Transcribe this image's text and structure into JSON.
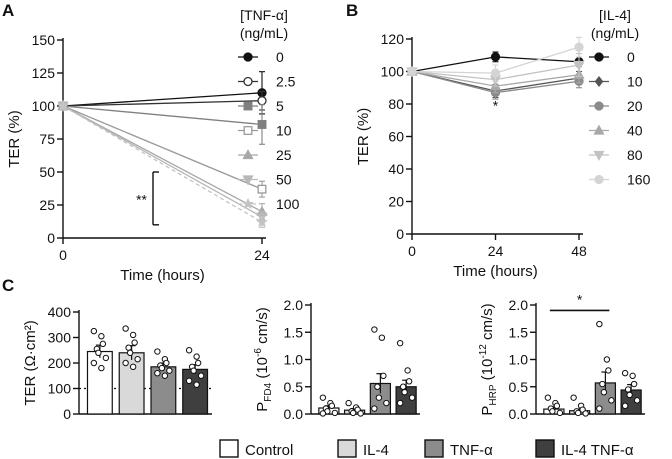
{
  "chart_data": [
    {
      "panel": "A",
      "type": "line",
      "xlabel": "Time (hours)",
      "ylabel": "TER (%)",
      "x": [
        0,
        24
      ],
      "xticks": [
        "0",
        "24"
      ],
      "ylim": [
        0,
        150
      ],
      "yticks": [
        0,
        25,
        50,
        75,
        100,
        125,
        150
      ],
      "legend_title_1": "[TNF-α]",
      "legend_title_2": "(ng/mL)",
      "significance": "**",
      "series": [
        {
          "name": "0",
          "values": [
            100,
            110
          ],
          "err": [
            0,
            16
          ],
          "color": "#111111",
          "marker": "circle",
          "filled": true,
          "dashed": false
        },
        {
          "name": "2.5",
          "values": [
            100,
            104
          ],
          "err": [
            0,
            7
          ],
          "color": "#333333",
          "marker": "circle",
          "filled": false,
          "dashed": false
        },
        {
          "name": "5",
          "values": [
            100,
            86
          ],
          "err": [
            0,
            15
          ],
          "color": "#808080",
          "marker": "square",
          "filled": true,
          "dashed": false
        },
        {
          "name": "10",
          "values": [
            100,
            37
          ],
          "err": [
            0,
            6
          ],
          "color": "#9a9a9a",
          "marker": "square",
          "filled": false,
          "dashed": false
        },
        {
          "name": "25",
          "values": [
            100,
            20
          ],
          "err": [
            0,
            6
          ],
          "color": "#a8a8a8",
          "marker": "triangle-up",
          "filled": true,
          "dashed": false
        },
        {
          "name": "50",
          "values": [
            100,
            16
          ],
          "err": [
            0,
            4
          ],
          "color": "#b8b8b8",
          "marker": "triangle-down",
          "filled": true,
          "dashed": false
        },
        {
          "name": "100",
          "values": [
            100,
            12
          ],
          "err": [
            0,
            4
          ],
          "color": "#c4c4c4",
          "marker": "star",
          "filled": true,
          "dashed": true
        }
      ]
    },
    {
      "panel": "B",
      "type": "line",
      "xlabel": "Time (hours)",
      "ylabel": "TER (%)",
      "x": [
        0,
        24,
        48
      ],
      "xticks": [
        "0",
        "24",
        "48"
      ],
      "ylim": [
        0,
        120
      ],
      "yticks": [
        0,
        20,
        40,
        60,
        80,
        100,
        120
      ],
      "legend_title_1": "[IL-4]",
      "legend_title_2": "(ng/mL)",
      "significance": "*",
      "series": [
        {
          "name": "0",
          "values": [
            100,
            109,
            106
          ],
          "err": [
            0,
            3,
            8
          ],
          "color": "#111111",
          "marker": "circle",
          "filled": true
        },
        {
          "name": "10",
          "values": [
            100,
            88,
            96
          ],
          "err": [
            0,
            4,
            4
          ],
          "color": "#555555",
          "marker": "diamond",
          "filled": true
        },
        {
          "name": "20",
          "values": [
            100,
            87,
            94
          ],
          "err": [
            0,
            4,
            4
          ],
          "color": "#8a8a8a",
          "marker": "circle",
          "filled": true
        },
        {
          "name": "40",
          "values": [
            100,
            91,
            98
          ],
          "err": [
            0,
            4,
            5
          ],
          "color": "#a8a8a8",
          "marker": "triangle-up",
          "filled": true
        },
        {
          "name": "80",
          "values": [
            100,
            95,
            104
          ],
          "err": [
            0,
            4,
            7
          ],
          "color": "#c2c2c2",
          "marker": "triangle-down",
          "filled": true
        },
        {
          "name": "160",
          "values": [
            100,
            99,
            115
          ],
          "err": [
            0,
            5,
            6
          ],
          "color": "#d4d4d4",
          "marker": "circle",
          "filled": true
        }
      ]
    },
    {
      "panel": "C1",
      "type": "bar",
      "ylabel": "TER (Ω·cm²)",
      "ylim": [
        0,
        400
      ],
      "yticks": [
        0,
        100,
        200,
        300,
        400
      ],
      "reference_line": 100,
      "bars": [
        {
          "category": "Control",
          "value": 245,
          "err": 25,
          "points": [
            325,
            305,
            275,
            255,
            240,
            220,
            200,
            180
          ]
        },
        {
          "category": "IL-4",
          "value": 240,
          "err": 28,
          "points": [
            335,
            310,
            280,
            260,
            240,
            215,
            200,
            185
          ]
        },
        {
          "category": "TNF-α",
          "value": 185,
          "err": 15,
          "points": [
            245,
            215,
            200,
            190,
            180,
            170,
            160,
            150
          ]
        },
        {
          "category": "IL-4 TNF-α",
          "value": 175,
          "err": 18,
          "points": [
            250,
            225,
            200,
            185,
            170,
            150,
            130,
            115
          ]
        }
      ]
    },
    {
      "panel": "C2",
      "type": "bar",
      "ylabel_main": "P",
      "ylabel_sub": "FD4",
      "ylabel_unit_pre": " (10",
      "ylabel_exp": "-6",
      "ylabel_unit_post": " cm/s)",
      "ylim": [
        0,
        2.0
      ],
      "yticks": [
        "0.0",
        "0.5",
        "1.0",
        "1.5",
        "2.0"
      ],
      "bars": [
        {
          "category": "Control",
          "value": 0.11,
          "err": 0.04,
          "points": [
            0.3,
            0.2,
            0.15,
            0.1,
            0.05,
            0.02,
            0.01
          ]
        },
        {
          "category": "IL-4",
          "value": 0.07,
          "err": 0.03,
          "points": [
            0.2,
            0.12,
            0.08,
            0.05,
            0.02,
            0.01
          ]
        },
        {
          "category": "TNF-α",
          "value": 0.56,
          "err": 0.18,
          "points": [
            1.55,
            1.4,
            0.7,
            0.5,
            0.3,
            0.2,
            0.1
          ]
        },
        {
          "category": "IL-4 TNF-α",
          "value": 0.5,
          "err": 0.12,
          "points": [
            1.3,
            0.8,
            0.6,
            0.5,
            0.4,
            0.3,
            0.2
          ]
        }
      ]
    },
    {
      "panel": "C3",
      "type": "bar",
      "ylabel_main": "P",
      "ylabel_sub": "HRP",
      "ylabel_unit_pre": " (10",
      "ylabel_exp": "-12",
      "ylabel_unit_post": " cm/s)",
      "ylim": [
        0,
        2.0
      ],
      "yticks": [
        "0.0",
        "0.5",
        "1.0",
        "1.5",
        "2.0"
      ],
      "significance": "*",
      "bars": [
        {
          "category": "Control",
          "value": 0.09,
          "err": 0.04,
          "points": [
            0.3,
            0.2,
            0.15,
            0.1,
            0.05,
            0.02
          ]
        },
        {
          "category": "IL-4",
          "value": 0.06,
          "err": 0.03,
          "points": [
            0.3,
            0.15,
            0.08,
            0.05,
            0.02,
            0.01
          ]
        },
        {
          "category": "TNF-α",
          "value": 0.57,
          "err": 0.2,
          "points": [
            1.65,
            1.0,
            0.8,
            0.55,
            0.4,
            0.25,
            0.1
          ]
        },
        {
          "category": "IL-4 TNF-α",
          "value": 0.44,
          "err": 0.1,
          "points": [
            0.75,
            0.7,
            0.55,
            0.45,
            0.35,
            0.25,
            0.15
          ]
        }
      ]
    }
  ],
  "panel_labels": [
    "A",
    "B",
    "C"
  ],
  "bar_legend": [
    {
      "label": "Control",
      "color": "#ffffff"
    },
    {
      "label": "IL-4",
      "color": "#d9d9d9"
    },
    {
      "label": "TNF-α",
      "color": "#8c8c8c"
    },
    {
      "label": "IL-4 TNF-α",
      "color": "#3f3f3f"
    }
  ]
}
